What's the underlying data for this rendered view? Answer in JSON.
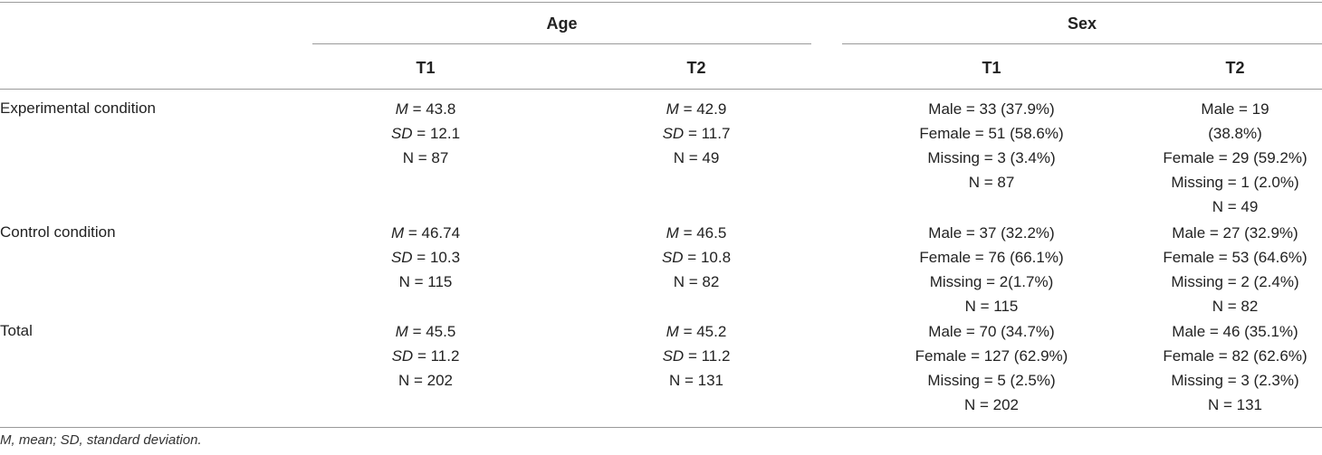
{
  "headers": {
    "age": "Age",
    "sex": "Sex",
    "age_t1": "T1",
    "age_t2": "T2",
    "sex_t1": "T1",
    "sex_t2": "T2"
  },
  "rows": [
    {
      "label": "Experimental condition",
      "age_t1": [
        "= 43.8",
        "= 12.1",
        "N = 87"
      ],
      "age_t2": [
        "= 42.9",
        "= 11.7",
        "N = 49"
      ],
      "sex_t1": [
        "Male = 33 (37.9%)",
        "Female = 51 (58.6%)",
        "Missing = 3 (3.4%)",
        "N = 87"
      ],
      "sex_t2": [
        "Male = 19",
        "(38.8%)",
        "Female = 29 (59.2%)",
        "Missing = 1 (2.0%)",
        "N = 49"
      ]
    },
    {
      "label": "Control condition",
      "age_t1": [
        "= 46.74",
        "= 10.3",
        "N = 115"
      ],
      "age_t2": [
        "= 46.5",
        "= 10.8",
        "N = 82"
      ],
      "sex_t1": [
        "Male = 37 (32.2%)",
        "Female = 76 (66.1%)",
        "Missing = 2(1.7%)",
        "N = 115"
      ],
      "sex_t2": [
        "Male = 27 (32.9%)",
        "Female = 53 (64.6%)",
        "Missing = 2 (2.4%)",
        "N = 82"
      ]
    },
    {
      "label": "Total",
      "age_t1": [
        "= 45.5",
        "= 11.2",
        "N = 202"
      ],
      "age_t2": [
        "= 45.2",
        "= 11.2",
        "N = 131"
      ],
      "sex_t1": [
        "Male = 70 (34.7%)",
        "Female = 127 (62.9%)",
        "Missing = 5 (2.5%)",
        "N = 202"
      ],
      "sex_t2": [
        "Male = 46 (35.1%)",
        "Female = 82 (62.6%)",
        "Missing = 3 (2.3%)",
        "N = 131"
      ]
    }
  ],
  "stat_labels": {
    "mean": "M",
    "sd": "SD"
  },
  "footnote": "M, mean; SD, standard deviation."
}
